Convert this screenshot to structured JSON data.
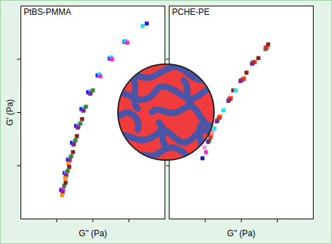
{
  "chart_data": [
    {
      "type": "scatter",
      "title": "PtBS-PMMA",
      "x_label": "G'' (Pa)",
      "y_label": "G' (Pa)",
      "log": true,
      "tick_labels": false,
      "marker": "square",
      "xlim": [
        1,
        10000
      ],
      "ylim": [
        1,
        10000
      ],
      "xticks": [
        10,
        100,
        1000
      ],
      "yticks": [
        10,
        100,
        1000
      ],
      "series": [
        {
          "color": "#1a1aff",
          "x": [
            13.2,
            16.4,
            20.3,
            26.3,
            34.1,
            48,
            74,
            135,
            293,
            757,
            3130
          ],
          "values": [
            3.5,
            7.3,
            13,
            27,
            56,
            116,
            240,
            497,
            1030,
            2130,
            4680
          ]
        },
        {
          "color": "#22e0f0",
          "x": [
            18,
            23,
            30,
            39,
            55,
            85,
            150,
            320,
            800,
            2400
          ],
          "values": [
            7.5,
            14,
            28,
            58,
            120,
            250,
            520,
            1080,
            2200,
            4200
          ]
        },
        {
          "color": "#ff22dd",
          "x": [
            15,
            18.5,
            23,
            30,
            40,
            56,
            88,
            160,
            340,
            900
          ],
          "values": [
            3.6,
            7.2,
            13,
            26,
            55,
            112,
            235,
            480,
            1000,
            2050
          ]
        },
        {
          "color": "#7a2a8a",
          "x": [
            14.5,
            18,
            22,
            29,
            38,
            54,
            84
          ],
          "values": [
            3.2,
            6.5,
            12.5,
            25,
            52,
            108,
            225
          ]
        },
        {
          "color": "#ff8c1a",
          "x": [
            14,
            17,
            21
          ],
          "values": [
            2.8,
            5.8,
            11
          ]
        },
        {
          "color": "#2e8b3a",
          "x": [
            16,
            20,
            25,
            33,
            45,
            64,
            100
          ],
          "values": [
            4.2,
            8,
            15,
            30,
            62,
            128,
            260
          ]
        },
        {
          "color": "#8b2020",
          "x": [
            17.5,
            22,
            28,
            36,
            50
          ],
          "values": [
            4.8,
            9.5,
            18,
            36,
            75
          ]
        }
      ]
    },
    {
      "type": "scatter",
      "title": "PCHE-PE",
      "x_label": "G'' (Pa)",
      "log": true,
      "tick_labels": false,
      "marker": "square",
      "xlim": [
        1,
        10000
      ],
      "ylim": [
        1,
        10000
      ],
      "xticks": [
        10,
        100,
        1000
      ],
      "yticks": [
        10,
        100,
        1000
      ],
      "series": [
        {
          "color": "#1a1a9a",
          "x": [
            8.4
          ],
          "values": [
            13.8
          ]
        },
        {
          "color": "#ff22dd",
          "x": [
            10.5,
            14,
            24,
            48,
            110,
            220,
            480
          ],
          "values": [
            18,
            36,
            80,
            185,
            420,
            880,
            1650
          ]
        },
        {
          "color": "#ff88dd",
          "x": [
            9.5,
            12,
            16
          ],
          "values": [
            22,
            28,
            45
          ]
        },
        {
          "color": "#2e8b3a",
          "x": [
            13,
            22,
            45,
            100,
            210,
            470
          ],
          "values": [
            30,
            72,
            170,
            400,
            860,
            1550
          ]
        },
        {
          "color": "#ff8c1a",
          "x": [
            15,
            26,
            52,
            120,
            240,
            520
          ],
          "values": [
            38,
            85,
            190,
            440,
            900,
            1700
          ]
        },
        {
          "color": "#e03030",
          "x": [
            14,
            25,
            50,
            115,
            230,
            500
          ],
          "values": [
            34,
            80,
            180,
            420,
            880,
            1650
          ]
        },
        {
          "color": "#7a2a8a",
          "x": [
            12,
            21,
            44,
            95,
            200
          ],
          "values": [
            28,
            68,
            165,
            390,
            820
          ]
        },
        {
          "color": "#8b2020",
          "x": [
            60,
            140,
            300,
            560
          ],
          "values": [
            260,
            560,
            1050,
            1900
          ]
        },
        {
          "color": "#22e0f0",
          "x": [
            18,
            32,
            70
          ],
          "values": [
            50,
            110,
            260
          ]
        }
      ]
    }
  ]
}
